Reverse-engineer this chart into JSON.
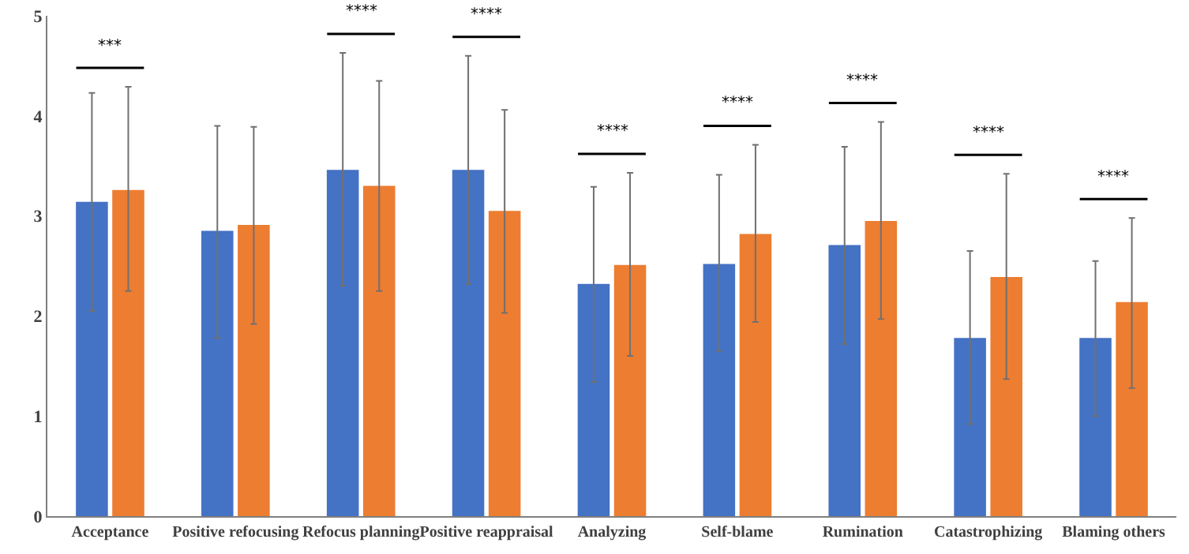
{
  "chart_data": {
    "type": "bar",
    "categories": [
      "Acceptance",
      "Positive refocusing",
      "Refocus planning",
      "Positive reappraisal",
      "Analyzing",
      "Self-blame",
      "Rumination",
      "Catastrophizing",
      "Blaming others"
    ],
    "series": [
      {
        "color": "#4472c4",
        "values": [
          3.14,
          2.85,
          3.46,
          3.46,
          2.32,
          2.52,
          2.71,
          1.78,
          1.78
        ],
        "errors": [
          [
            2.05,
            4.23
          ],
          [
            1.78,
            3.9
          ],
          [
            2.3,
            4.63
          ],
          [
            2.32,
            4.6
          ],
          [
            1.34,
            3.29
          ],
          [
            1.65,
            3.41
          ],
          [
            1.72,
            3.69
          ],
          [
            0.92,
            2.65
          ],
          [
            1.0,
            2.55
          ]
        ]
      },
      {
        "color": "#ed7d31",
        "values": [
          3.26,
          2.91,
          3.3,
          3.05,
          2.51,
          2.82,
          2.95,
          2.39,
          2.14
        ],
        "errors": [
          [
            2.25,
            4.29
          ],
          [
            1.92,
            3.89
          ],
          [
            2.25,
            4.35
          ],
          [
            2.03,
            4.06
          ],
          [
            1.6,
            3.43
          ],
          [
            1.94,
            3.71
          ],
          [
            1.97,
            3.94
          ],
          [
            1.37,
            3.42
          ],
          [
            1.28,
            2.98
          ]
        ]
      }
    ],
    "ylim": [
      0,
      5
    ],
    "yticks": [
      0,
      1,
      2,
      3,
      4,
      5
    ],
    "grid": false,
    "annotations": [
      "***",
      "****",
      "****",
      "****",
      "****",
      "****",
      "****",
      "****"
    ]
  }
}
